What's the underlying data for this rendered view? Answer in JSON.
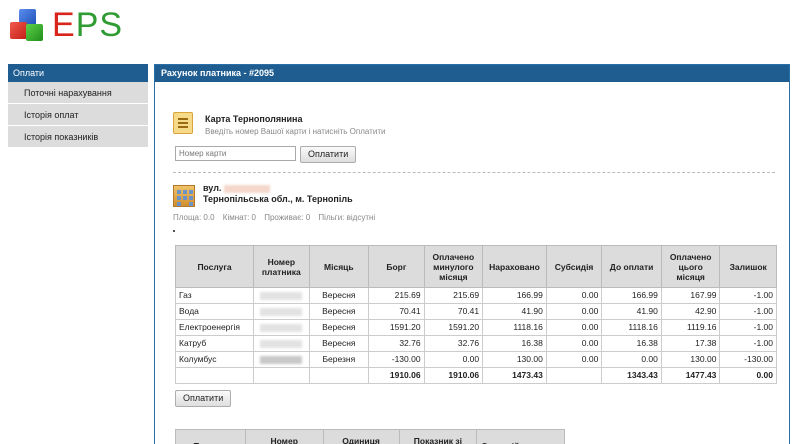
{
  "header": {
    "logo_text_e": "E",
    "logo_text_ps": "PS"
  },
  "sidebar": {
    "title": "Оплати",
    "items": [
      {
        "label": "Поточні нарахування"
      },
      {
        "label": "Історія оплат"
      },
      {
        "label": "Історія показників"
      }
    ]
  },
  "panel": {
    "title": "Рахунок платника - #2095",
    "card": {
      "title": "Карта Тернополянина",
      "subtitle": "Введіть номер Вашої карти і натисніть Оплатити",
      "input_placeholder": "Номер карти",
      "pay_label": "Оплатити"
    },
    "address": {
      "street_prefix": "вул.",
      "city": "Тернопільська обл., м. Тернопіль",
      "area": "Площа: 0.0",
      "rooms": "Кімнат: 0",
      "residents": "Проживає: 0",
      "benefits": "Пільги: відсутні"
    },
    "dot": ".",
    "charges": {
      "headers": [
        "Послуга",
        "Номер платника",
        "Місяць",
        "Борг",
        "Оплачено минулого місяця",
        "Нараховано",
        "Субсидія",
        "До оплати",
        "Оплачено цього місяця",
        "Залишок"
      ],
      "rows": [
        {
          "service": "Газ",
          "month": "Вересня",
          "debt": "215.69",
          "paid_prev": "215.69",
          "charged": "166.99",
          "subsidy": "0.00",
          "to_pay": "166.99",
          "paid_curr": "167.99",
          "balance": "-1.00"
        },
        {
          "service": "Вода",
          "month": "Вересня",
          "debt": "70.41",
          "paid_prev": "70.41",
          "charged": "41.90",
          "subsidy": "0.00",
          "to_pay": "41.90",
          "paid_curr": "42.90",
          "balance": "-1.00"
        },
        {
          "service": "Електроенергія",
          "month": "Вересня",
          "debt": "1591.20",
          "paid_prev": "1591.20",
          "charged": "1118.16",
          "subsidy": "0.00",
          "to_pay": "1118.16",
          "paid_curr": "1119.16",
          "balance": "-1.00"
        },
        {
          "service": "Катруб",
          "month": "Вересня",
          "debt": "32.76",
          "paid_prev": "32.76",
          "charged": "16.38",
          "subsidy": "0.00",
          "to_pay": "16.38",
          "paid_curr": "17.38",
          "balance": "-1.00"
        },
        {
          "service": "Колумбус",
          "month": "Березня",
          "debt": "-130.00",
          "paid_prev": "0.00",
          "charged": "130.00",
          "subsidy": "0.00",
          "to_pay": "0.00",
          "paid_curr": "130.00",
          "balance": "-130.00"
        }
      ],
      "totals": {
        "debt": "1910.06",
        "paid_prev": "1910.06",
        "charged": "1473.43",
        "to_pay": "1343.43",
        "paid_curr": "1477.43",
        "balance": "0.00"
      }
    },
    "pay_button2": "Оплатити",
    "meters": {
      "headers": [
        "Послуга",
        "Номер лічильника",
        "Одиниця вимірювання",
        "Показник зі служби",
        "Останній показник"
      ]
    }
  }
}
